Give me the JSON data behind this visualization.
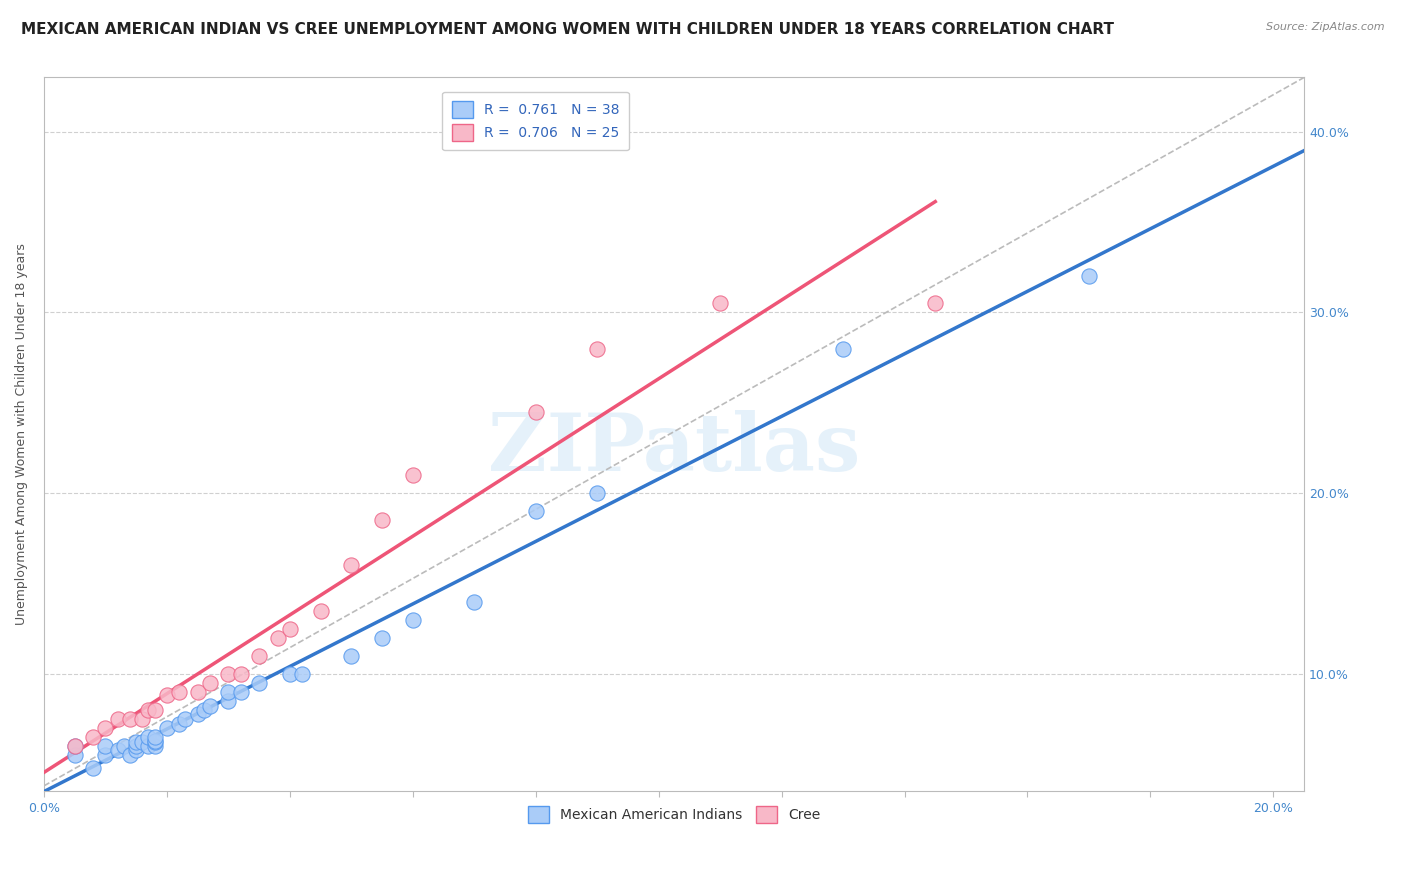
{
  "title": "MEXICAN AMERICAN INDIAN VS CREE UNEMPLOYMENT AMONG WOMEN WITH CHILDREN UNDER 18 YEARS CORRELATION CHART",
  "source": "Source: ZipAtlas.com",
  "ylabel": "Unemployment Among Women with Children Under 18 years",
  "xlim": [
    0.0,
    0.205
  ],
  "ylim": [
    0.035,
    0.43
  ],
  "background_color": "#ffffff",
  "grid_color": "#d0d0d0",
  "watermark": "ZIPatlas",
  "legend_R1": "0.761",
  "legend_N1": "38",
  "legend_R2": "0.706",
  "legend_N2": "25",
  "series1_color": "#aaccf8",
  "series1_edge": "#5599ee",
  "series2_color": "#f8b8c8",
  "series2_edge": "#ee6688",
  "line1_color": "#3377cc",
  "line2_color": "#ee5577",
  "ref_line_color": "#bbbbbb",
  "mexican_x": [
    0.005,
    0.005,
    0.008,
    0.01,
    0.01,
    0.012,
    0.013,
    0.014,
    0.015,
    0.015,
    0.015,
    0.016,
    0.017,
    0.017,
    0.018,
    0.018,
    0.018,
    0.018,
    0.02,
    0.022,
    0.023,
    0.025,
    0.026,
    0.027,
    0.03,
    0.03,
    0.032,
    0.035,
    0.04,
    0.042,
    0.05,
    0.055,
    0.06,
    0.07,
    0.08,
    0.09,
    0.13,
    0.17
  ],
  "mexican_y": [
    0.055,
    0.06,
    0.048,
    0.055,
    0.06,
    0.058,
    0.06,
    0.055,
    0.058,
    0.06,
    0.062,
    0.062,
    0.06,
    0.065,
    0.06,
    0.062,
    0.063,
    0.065,
    0.07,
    0.072,
    0.075,
    0.078,
    0.08,
    0.082,
    0.085,
    0.09,
    0.09,
    0.095,
    0.1,
    0.1,
    0.11,
    0.12,
    0.13,
    0.14,
    0.19,
    0.2,
    0.28,
    0.32
  ],
  "cree_x": [
    0.005,
    0.008,
    0.01,
    0.012,
    0.014,
    0.016,
    0.017,
    0.018,
    0.02,
    0.022,
    0.025,
    0.027,
    0.03,
    0.032,
    0.035,
    0.038,
    0.04,
    0.045,
    0.05,
    0.055,
    0.06,
    0.08,
    0.09,
    0.11,
    0.145
  ],
  "cree_y": [
    0.06,
    0.065,
    0.07,
    0.075,
    0.075,
    0.075,
    0.08,
    0.08,
    0.088,
    0.09,
    0.09,
    0.095,
    0.1,
    0.1,
    0.11,
    0.12,
    0.125,
    0.135,
    0.16,
    0.185,
    0.21,
    0.245,
    0.28,
    0.305,
    0.305
  ],
  "title_fontsize": 11,
  "axis_label_fontsize": 9,
  "tick_fontsize": 9,
  "legend_fontsize": 10,
  "ytick_right": [
    0.1,
    0.2,
    0.3,
    0.4
  ],
  "ytick_right_labels": [
    "10.0%",
    "20.0%",
    "30.0%",
    "40.0%"
  ],
  "xtick_show": [
    0.0,
    0.2
  ],
  "xtick_show_labels": [
    "0.0%",
    "20.0%"
  ]
}
